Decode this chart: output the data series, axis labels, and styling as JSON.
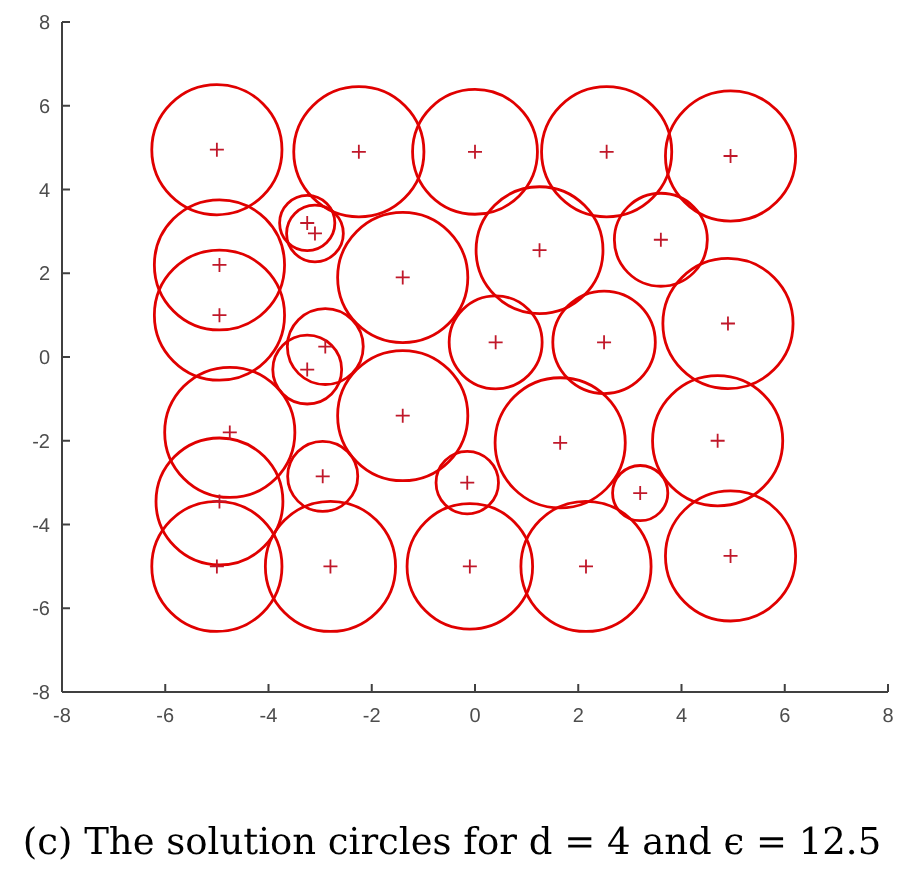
{
  "chart_data": {
    "type": "bubble",
    "series": [
      {
        "color": "#e00000",
        "x": [
          -5.0,
          -2.25,
          0.0,
          2.55,
          4.95,
          -4.95,
          -3.25,
          -3.1,
          -1.4,
          1.25,
          3.6,
          -4.95,
          -2.9,
          -3.25,
          0.4,
          2.5,
          4.9,
          -4.75,
          -1.4,
          1.65,
          4.7,
          -4.95,
          -2.95,
          -0.15,
          3.2,
          -5.0,
          -2.8,
          -0.1,
          2.15,
          4.95
        ],
        "values": [
          4.95,
          4.9,
          4.9,
          4.9,
          4.8,
          2.2,
          3.2,
          2.95,
          1.9,
          2.55,
          2.8,
          1.0,
          0.25,
          -0.3,
          0.35,
          0.35,
          0.8,
          -1.8,
          -1.4,
          -2.05,
          -2.0,
          -3.45,
          -2.85,
          -3.0,
          -3.25,
          -5.0,
          -5.0,
          -5.0,
          -5.0,
          -4.75
        ],
        "sizes": [
          1,
          1,
          0.92,
          1,
          1,
          1,
          0.18,
          0.19,
          1,
          0.95,
          0.51,
          1,
          0.34,
          0.28,
          0.51,
          0.62,
          1,
          1,
          1,
          1,
          1,
          0.95,
          0.29,
          0.23,
          0.18,
          1,
          1,
          0.93,
          1,
          1
        ]
      },
      {
        "type": "scatter",
        "color": "#c0182a",
        "marker": "cross",
        "x": [
          -5.0,
          -2.25,
          0.0,
          2.55,
          4.95,
          -4.95,
          -3.25,
          -3.1,
          -1.4,
          1.25,
          3.6,
          -4.95,
          -2.9,
          -3.25,
          0.4,
          2.5,
          4.9,
          -4.75,
          -1.4,
          1.65,
          4.7,
          -4.95,
          -2.95,
          -0.15,
          3.2,
          -5.0,
          -2.8,
          -0.1,
          2.15,
          4.95
        ],
        "values": [
          4.95,
          4.9,
          4.9,
          4.9,
          4.8,
          2.2,
          3.2,
          2.95,
          1.9,
          2.55,
          2.8,
          1.0,
          0.25,
          -0.3,
          0.35,
          0.35,
          0.8,
          -1.8,
          -1.4,
          -2.05,
          -2.0,
          -3.45,
          -2.85,
          -3.0,
          -3.25,
          -5.0,
          -5.0,
          -5.0,
          -5.0,
          -4.75
        ]
      }
    ],
    "xlim": [
      -8,
      8
    ],
    "xticks": [
      -8,
      -6,
      -4,
      -2,
      0,
      2,
      4,
      6,
      8
    ],
    "ylim": [
      -8,
      8
    ],
    "yticks": [
      -8,
      -6,
      -4,
      -2,
      0,
      2,
      4,
      6,
      8
    ],
    "annotations": [
      "(c) The solution circles for d = 4 and ϵ = 12.5"
    ]
  }
}
